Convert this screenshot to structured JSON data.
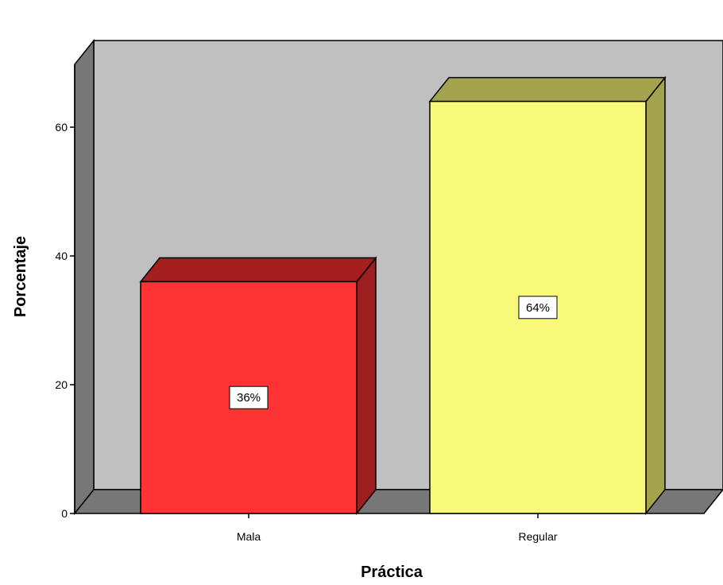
{
  "chart_data": {
    "type": "bar",
    "style": "3d",
    "categories": [
      "Mala",
      "Regular"
    ],
    "values": [
      36,
      64
    ],
    "data_labels": [
      "36%",
      "64%"
    ],
    "xlabel": "Práctica",
    "ylabel": "Porcentaje",
    "ylim": [
      0,
      70
    ],
    "yticks": [
      0,
      20,
      40,
      60
    ],
    "ytick_labels": [
      "0",
      "20",
      "40",
      "60"
    ],
    "grid": false,
    "legend": "none",
    "colors": {
      "bar_front": [
        "#ff3333",
        "#f8f87a"
      ],
      "bar_top": [
        "#a61f1f",
        "#a3a34e"
      ],
      "bar_side": [
        "#9c1f1f",
        "#a3a34e"
      ],
      "back_wall": "#c0c0c0",
      "side_wall": "#777777",
      "floor": "#777777"
    }
  }
}
